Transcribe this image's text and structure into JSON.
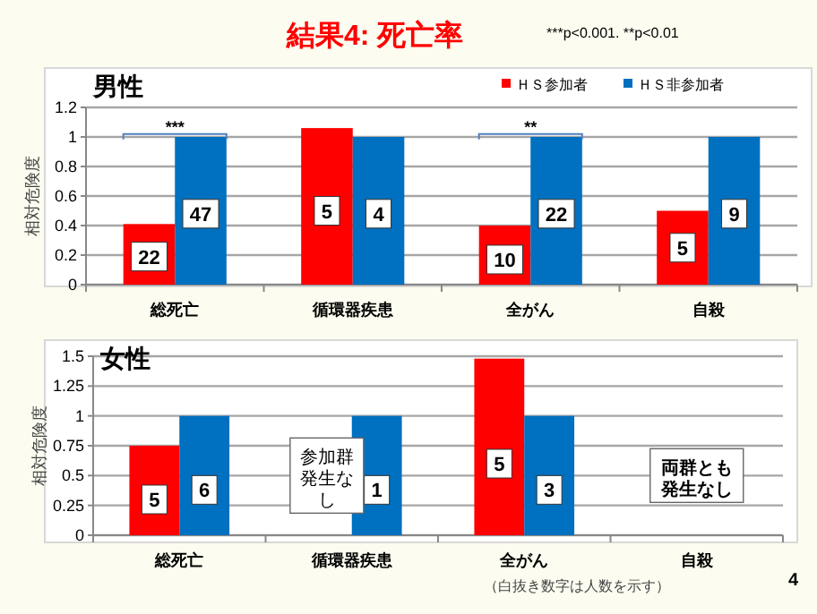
{
  "chart_data": [
    {
      "type": "bar",
      "title": "結果4:  死亡率",
      "subtitle": "男性",
      "ylabel": "相対危険度",
      "categories": [
        "総死亡",
        "循環器疾患",
        "全がん",
        "自殺"
      ],
      "series": [
        {
          "name": "ＨＳ参加者",
          "color": "#ff0000",
          "values": [
            0.41,
            1.06,
            0.4,
            0.5
          ]
        },
        {
          "name": "ＨＳ非参加者",
          "color": "#0070c0",
          "values": [
            1,
            1,
            1,
            1
          ]
        }
      ],
      "ylim": [
        0,
        1.2
      ],
      "yticks": [
        0,
        0.2,
        0.4,
        0.6,
        0.8,
        1,
        1.2
      ],
      "grid": "y",
      "legend": "top right",
      "annotations": [
        "***p<0.001.  **p<0.01",
        {
          "text": "***",
          "x": "総死亡",
          "y": 1.02
        },
        {
          "text": "**",
          "x": "全がん",
          "y": 1.02
        },
        {
          "text": "22",
          "x": "総死亡",
          "y": 0.19
        },
        {
          "text": "47",
          "x": "総死亡",
          "y": 0.48
        },
        {
          "text": "5",
          "x": "循環器疾患",
          "y": 0.5
        },
        {
          "text": "4",
          "x": "循環器疾患",
          "y": 0.48
        },
        {
          "text": "10",
          "x": "全がん",
          "y": 0.17
        },
        {
          "text": "22",
          "x": "全がん",
          "y": 0.48
        },
        {
          "text": "5",
          "x": "自殺",
          "y": 0.25
        },
        {
          "text": "9",
          "x": "自殺",
          "y": 0.48
        }
      ]
    },
    {
      "type": "bar",
      "subtitle": "女性",
      "ylabel": "相対危険度",
      "categories": [
        "総死亡",
        "循環器疾患",
        "全がん",
        "自殺"
      ],
      "series": [
        {
          "color": "#ff0000",
          "values": [
            0.75,
            null,
            1.48,
            null
          ]
        },
        {
          "color": "#0070c0",
          "values": [
            1,
            1,
            1,
            null
          ]
        }
      ],
      "ylim": [
        0,
        1.5
      ],
      "yticks": [
        0,
        0.25,
        0.5,
        0.75,
        1,
        1.25,
        1.5
      ],
      "grid": "y",
      "annotations": [
        {
          "text": "5",
          "x": "総死亡",
          "y": 0.3
        },
        {
          "text": "6",
          "x": "総死亡",
          "y": 0.38
        },
        {
          "text": "1",
          "x": "循環器疾患",
          "y": 0.38
        },
        {
          "text": "5",
          "x": "全がん",
          "y": 0.6
        },
        {
          "text": "3",
          "x": "全がん",
          "y": 0.38
        },
        "参加群発生なし",
        "両群とも発生なし",
        "（白抜き数字は人数を示す）",
        "4"
      ]
    }
  ]
}
